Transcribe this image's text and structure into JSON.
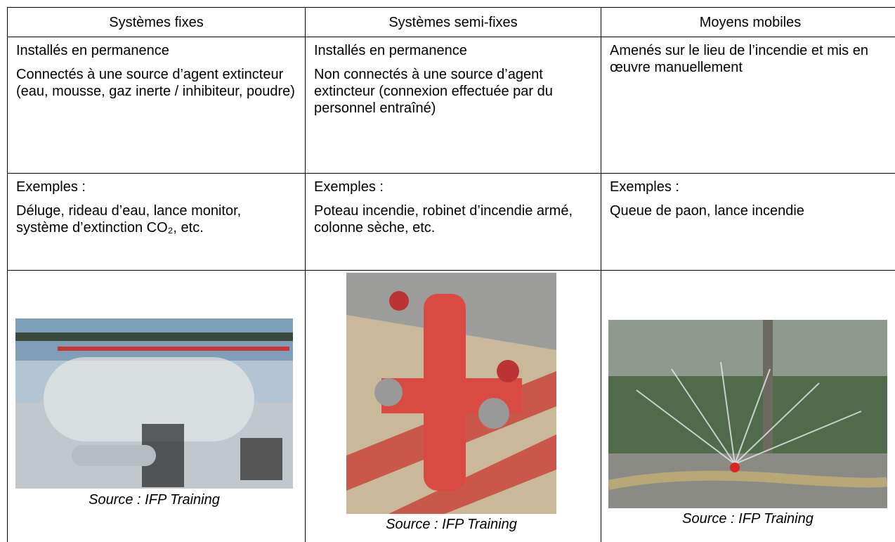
{
  "table": {
    "header": [
      "Systèmes fixes",
      "Systèmes semi-fixes",
      "Moyens mobiles"
    ],
    "rows": [
      [
        [
          "Installés en permanence",
          "Connectés à une source d’agent extincteur (eau, mousse, gaz inerte / inhibiteur, poudre)"
        ],
        [
          "Installés en permanence",
          "Non connectés à une source d’agent extincteur (connexion effectuée par du personnel entraîné)"
        ],
        [
          "Amenés sur le lieu de l’incendie et mis en œuvre manuellement"
        ]
      ],
      [
        [
          "Exemples :",
          "Déluge, rideau d’eau, lance monitor, système d’extinction CO₂, etc."
        ],
        [
          "Exemples :",
          "Poteau incendie, robinet d’incendie armé, colonne sèche, etc."
        ],
        [
          "Exemples :",
          "Queue de paon, lance incendie"
        ]
      ]
    ],
    "captions": [
      "Source : IFP Training",
      "Source : IFP Training",
      "Source : IFP Training"
    ]
  }
}
